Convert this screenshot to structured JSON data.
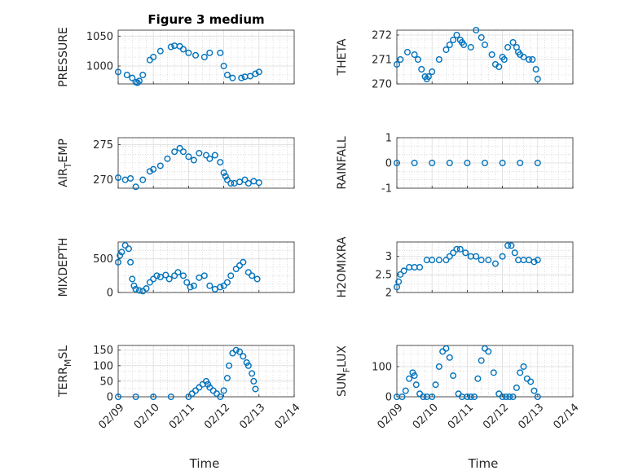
{
  "figure_title": "Figure 3 medium",
  "marker_color": "#0072BD",
  "chart_data": [
    {
      "id": "pressure",
      "type": "scatter",
      "marker": "open-circle",
      "title": "Figure 3 medium",
      "ylabel": "PRESSURE",
      "ylabel_sub": "",
      "ylabel_tail": "",
      "xlabel": "",
      "ylim": [
        970,
        1060
      ],
      "yticks": [
        1000,
        1050
      ],
      "xlim": [
        0,
        5
      ],
      "xtick_labels": [
        "02/09",
        "02/10",
        "02/11",
        "02/12",
        "02/13",
        "02/14"
      ],
      "show_xtick_labels": false,
      "series": [
        {
          "x": [
            0.0,
            0.25,
            0.4,
            0.5,
            0.55,
            0.6,
            0.7,
            0.9,
            1.0,
            1.2,
            1.5,
            1.6,
            1.75,
            1.85,
            2.0,
            2.2,
            2.45,
            2.6,
            2.9,
            3.0,
            3.1,
            3.25,
            3.5,
            3.6,
            3.75,
            3.9,
            4.0
          ],
          "y": [
            990,
            985,
            980,
            973,
            972,
            975,
            985,
            1010,
            1015,
            1025,
            1032,
            1034,
            1033,
            1028,
            1022,
            1018,
            1015,
            1022,
            1022,
            1000,
            985,
            980,
            980,
            982,
            983,
            987,
            990
          ]
        }
      ]
    },
    {
      "id": "theta",
      "type": "scatter",
      "marker": "open-circle",
      "title": "",
      "ylabel": "THETA",
      "ylabel_sub": "",
      "ylabel_tail": "",
      "xlabel": "",
      "ylim": [
        270,
        272.2
      ],
      "yticks": [
        270,
        271,
        272
      ],
      "xlim": [
        0,
        5
      ],
      "xtick_labels": [
        "02/09",
        "02/10",
        "02/11",
        "02/12",
        "02/13",
        "02/14"
      ],
      "show_xtick_labels": false,
      "series": [
        {
          "x": [
            0.0,
            0.1,
            0.3,
            0.5,
            0.6,
            0.7,
            0.8,
            0.85,
            0.9,
            1.0,
            1.2,
            1.4,
            1.5,
            1.6,
            1.7,
            1.8,
            1.85,
            1.9,
            2.1,
            2.25,
            2.4,
            2.5,
            2.7,
            2.8,
            2.9,
            3.0,
            3.05,
            3.15,
            3.3,
            3.4,
            3.45,
            3.5,
            3.6,
            3.75,
            3.85,
            3.95,
            4.0
          ],
          "y": [
            270.8,
            271.0,
            271.3,
            271.2,
            271.0,
            270.6,
            270.3,
            270.2,
            270.3,
            270.5,
            271.0,
            271.4,
            271.6,
            271.8,
            272.0,
            271.8,
            271.7,
            271.6,
            271.5,
            272.2,
            271.9,
            271.6,
            271.2,
            270.8,
            270.7,
            271.1,
            271.0,
            271.5,
            271.7,
            271.5,
            271.3,
            271.2,
            271.1,
            271.0,
            271.0,
            270.6,
            270.2
          ]
        }
      ]
    },
    {
      "id": "air_temp",
      "type": "scatter",
      "marker": "open-circle",
      "title": "",
      "ylabel": "AIR",
      "ylabel_sub": "T",
      "ylabel_tail": "EMP",
      "xlabel": "",
      "ylim": [
        268.8,
        276
      ],
      "yticks": [
        270,
        275
      ],
      "xlim": [
        0,
        5
      ],
      "xtick_labels": [
        "02/09",
        "02/10",
        "02/11",
        "02/12",
        "02/13",
        "02/14"
      ],
      "show_xtick_labels": false,
      "series": [
        {
          "x": [
            0.0,
            0.2,
            0.35,
            0.5,
            0.7,
            0.9,
            1.0,
            1.2,
            1.4,
            1.6,
            1.75,
            1.85,
            2.0,
            2.15,
            2.3,
            2.5,
            2.6,
            2.75,
            2.9,
            3.0,
            3.05,
            3.1,
            3.2,
            3.3,
            3.45,
            3.6,
            3.7,
            3.85,
            4.0
          ],
          "y": [
            270.3,
            270.0,
            270.2,
            269.0,
            270.0,
            271.2,
            271.5,
            272.0,
            273.0,
            274.0,
            274.5,
            274.0,
            273.3,
            272.8,
            273.8,
            273.5,
            273.0,
            273.5,
            272.5,
            271.0,
            270.5,
            270.0,
            269.5,
            269.5,
            269.7,
            270.0,
            269.5,
            269.8,
            269.6
          ]
        }
      ]
    },
    {
      "id": "rainfall",
      "type": "scatter",
      "marker": "open-circle",
      "title": "",
      "ylabel": "RAINFALL",
      "ylabel_sub": "",
      "ylabel_tail": "",
      "xlabel": "",
      "ylim": [
        -1,
        1
      ],
      "yticks": [
        -1,
        0,
        1
      ],
      "xlim": [
        0,
        5
      ],
      "xtick_labels": [
        "02/09",
        "02/10",
        "02/11",
        "02/12",
        "02/13",
        "02/14"
      ],
      "show_xtick_labels": false,
      "series": [
        {
          "x": [
            0.0,
            0.5,
            1.0,
            1.5,
            2.0,
            2.5,
            3.0,
            3.5,
            4.0
          ],
          "y": [
            0,
            0,
            0,
            0,
            0,
            0,
            0,
            0,
            0
          ]
        }
      ]
    },
    {
      "id": "mixdepth",
      "type": "scatter",
      "marker": "open-circle",
      "title": "",
      "ylabel": "MIXDEPTH",
      "ylabel_sub": "",
      "ylabel_tail": "",
      "xlabel": "",
      "ylim": [
        0,
        750
      ],
      "yticks": [
        0,
        500
      ],
      "xlim": [
        0,
        5
      ],
      "xtick_labels": [
        "02/09",
        "02/10",
        "02/11",
        "02/12",
        "02/13",
        "02/14"
      ],
      "show_xtick_labels": false,
      "series": [
        {
          "x": [
            0.0,
            0.05,
            0.1,
            0.2,
            0.3,
            0.35,
            0.4,
            0.45,
            0.5,
            0.6,
            0.7,
            0.8,
            0.9,
            1.0,
            1.1,
            1.2,
            1.35,
            1.45,
            1.6,
            1.7,
            1.85,
            1.95,
            2.05,
            2.15,
            2.3,
            2.45,
            2.6,
            2.75,
            2.9,
            3.0,
            3.1,
            3.2,
            3.35,
            3.45,
            3.55,
            3.7,
            3.8,
            3.95
          ],
          "y": [
            450,
            550,
            600,
            700,
            650,
            450,
            200,
            100,
            50,
            30,
            20,
            60,
            150,
            200,
            250,
            230,
            260,
            200,
            250,
            300,
            250,
            150,
            80,
            100,
            220,
            250,
            100,
            50,
            80,
            100,
            150,
            250,
            350,
            400,
            450,
            300,
            250,
            200
          ]
        }
      ]
    },
    {
      "id": "h2omixra",
      "type": "scatter",
      "marker": "open-circle",
      "title": "",
      "ylabel": "H2OMIXRA",
      "ylabel_sub": "",
      "ylabel_tail": "",
      "xlabel": "",
      "ylim": [
        2,
        3.4
      ],
      "yticks": [
        2,
        2.5,
        3
      ],
      "xlim": [
        0,
        5
      ],
      "xtick_labels": [
        "02/09",
        "02/10",
        "02/11",
        "02/12",
        "02/13",
        "02/14"
      ],
      "show_xtick_labels": false,
      "series": [
        {
          "x": [
            0.0,
            0.05,
            0.1,
            0.2,
            0.35,
            0.5,
            0.65,
            0.85,
            1.0,
            1.2,
            1.4,
            1.5,
            1.6,
            1.7,
            1.8,
            1.95,
            2.1,
            2.25,
            2.4,
            2.6,
            2.8,
            3.0,
            3.15,
            3.25,
            3.35,
            3.45,
            3.6,
            3.75,
            3.9,
            4.0
          ],
          "y": [
            2.15,
            2.3,
            2.5,
            2.6,
            2.7,
            2.7,
            2.7,
            2.9,
            2.9,
            2.9,
            2.9,
            3.0,
            3.1,
            3.2,
            3.2,
            3.1,
            3.0,
            3.0,
            2.9,
            2.9,
            2.8,
            3.0,
            3.3,
            3.3,
            3.1,
            2.9,
            2.9,
            2.9,
            2.85,
            2.9
          ]
        }
      ]
    },
    {
      "id": "terr_msl",
      "type": "scatter",
      "marker": "open-circle",
      "title": "",
      "ylabel": "TERR",
      "ylabel_sub": "M",
      "ylabel_tail": "SL",
      "xlabel": "Time",
      "ylim": [
        0,
        165
      ],
      "yticks": [
        0,
        50,
        100,
        150
      ],
      "xlim": [
        0,
        5
      ],
      "xtick_labels": [
        "02/09",
        "02/10",
        "02/11",
        "02/12",
        "02/13",
        "02/14"
      ],
      "show_xtick_labels": true,
      "series": [
        {
          "x": [
            0.0,
            0.5,
            1.0,
            1.5,
            2.0,
            2.1,
            2.2,
            2.3,
            2.4,
            2.5,
            2.55,
            2.6,
            2.7,
            2.8,
            2.9,
            3.0,
            3.1,
            3.15,
            3.25,
            3.35,
            3.45,
            3.55,
            3.65,
            3.7,
            3.8,
            3.85,
            3.9
          ],
          "y": [
            0,
            0,
            0,
            0,
            0,
            10,
            20,
            30,
            40,
            50,
            40,
            30,
            20,
            10,
            0,
            20,
            60,
            100,
            140,
            150,
            145,
            130,
            110,
            100,
            75,
            50,
            25
          ]
        }
      ]
    },
    {
      "id": "sun_flux",
      "type": "scatter",
      "marker": "open-circle",
      "title": "",
      "ylabel": "SUN",
      "ylabel_sub": "F",
      "ylabel_tail": "LUX",
      "xlabel": "Time",
      "ylim": [
        0,
        170
      ],
      "yticks": [
        0,
        100
      ],
      "xlim": [
        0,
        5
      ],
      "xtick_labels": [
        "02/09",
        "02/10",
        "02/11",
        "02/12",
        "02/13",
        "02/14"
      ],
      "show_xtick_labels": true,
      "series": [
        {
          "x": [
            0.0,
            0.15,
            0.25,
            0.35,
            0.45,
            0.5,
            0.55,
            0.65,
            0.75,
            0.85,
            1.0,
            1.1,
            1.2,
            1.3,
            1.4,
            1.5,
            1.6,
            1.75,
            1.85,
            2.0,
            2.1,
            2.2,
            2.3,
            2.4,
            2.5,
            2.6,
            2.75,
            2.9,
            3.0,
            3.1,
            3.2,
            3.3,
            3.4,
            3.5,
            3.6,
            3.7,
            3.8,
            3.9,
            4.0
          ],
          "y": [
            0,
            0,
            20,
            60,
            80,
            70,
            40,
            10,
            0,
            0,
            0,
            40,
            100,
            150,
            160,
            130,
            70,
            10,
            0,
            0,
            0,
            0,
            60,
            120,
            160,
            150,
            80,
            10,
            0,
            0,
            0,
            0,
            30,
            80,
            100,
            60,
            50,
            20,
            0
          ]
        }
      ]
    }
  ]
}
